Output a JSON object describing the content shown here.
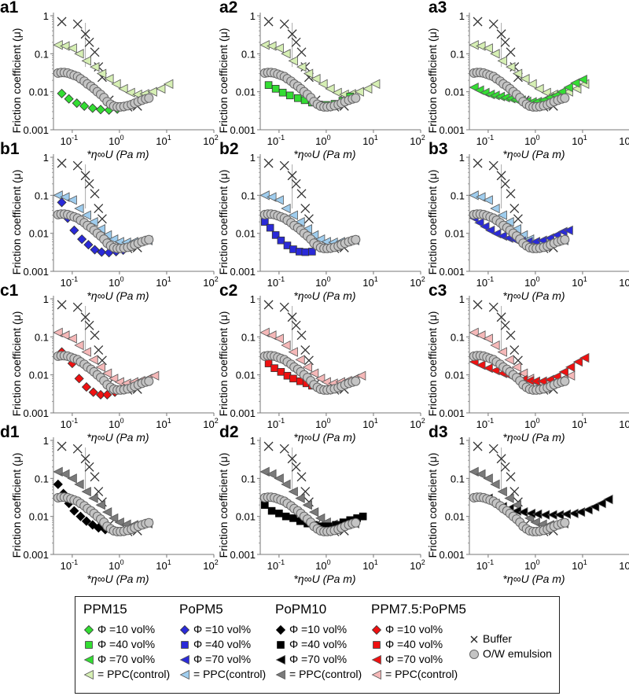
{
  "chart_data": {
    "type": "scatter",
    "xlabel": "*η∞U (Pa m)",
    "ylabel": "Friction coefficient (μ)",
    "xscale": "log",
    "yscale": "log",
    "xlim": [
      0.04,
      100
    ],
    "ylim": [
      0.001,
      1
    ],
    "y_ticks": [
      "1",
      "0.1",
      "0.01",
      "0.001"
    ],
    "y_tick_values": [
      1,
      0.1,
      0.01,
      0.001
    ],
    "x_ticks": [
      {
        "base": "10",
        "exp": "-1",
        "value": 0.1
      },
      {
        "base": "10",
        "exp": "0",
        "value": 1
      },
      {
        "base": "10",
        "exp": "1",
        "value": 10
      },
      {
        "base": "10",
        "exp": "2",
        "value": 100
      }
    ],
    "common_series": {
      "buffer": {
        "name": "Buffer",
        "marker": "x",
        "color": "#333333",
        "x": [
          0.06,
          0.13,
          0.19,
          0.23,
          0.3,
          0.36,
          0.43,
          0.6,
          1.5,
          2.4
        ],
        "y": [
          0.7,
          0.6,
          0.33,
          0.2,
          0.11,
          0.045,
          0.024,
          0.006,
          0.004,
          0.0042
        ],
        "errorbar": {
          "x": 0.19,
          "low": 0.045,
          "high": 0.65
        }
      },
      "emulsion": {
        "name": "O/W emulsion",
        "marker": "circle",
        "color": "#c4c4c4",
        "x": [
          0.05,
          0.058,
          0.068,
          0.08,
          0.094,
          0.11,
          0.13,
          0.15,
          0.18,
          0.21,
          0.25,
          0.29,
          0.34,
          0.4,
          0.47,
          0.55,
          0.65,
          0.76,
          0.9,
          1.05,
          1.25,
          1.5,
          1.8,
          2.1,
          2.5,
          3.0,
          3.6,
          4.2
        ],
        "y": [
          0.031,
          0.032,
          0.032,
          0.031,
          0.029,
          0.027,
          0.025,
          0.022,
          0.019,
          0.016,
          0.014,
          0.012,
          0.01,
          0.0085,
          0.007,
          0.0055,
          0.0047,
          0.0042,
          0.004,
          0.004,
          0.0041,
          0.0043,
          0.0046,
          0.005,
          0.0055,
          0.006,
          0.0065,
          0.0068
        ]
      }
    },
    "panels": [
      {
        "id": "a1",
        "row": 0,
        "col": 0,
        "test": {
          "name": "PPM15 Φ =10 vol%",
          "marker": "diamond",
          "color": "#33dd33",
          "x": [
            0.06,
            0.085,
            0.125,
            0.18,
            0.27,
            0.4,
            0.6,
            0.9
          ],
          "y": [
            0.009,
            0.0065,
            0.005,
            0.0042,
            0.0037,
            0.0034,
            0.0033,
            0.0035
          ]
        }
      },
      {
        "id": "a2",
        "row": 0,
        "col": 1,
        "test": {
          "name": "PPM15 Φ =40 vol%",
          "marker": "square",
          "color": "#33dd33",
          "x": [
            0.06,
            0.085,
            0.12,
            0.17,
            0.25,
            0.35,
            0.5,
            0.7,
            1.0,
            1.5,
            2.2,
            3.2
          ],
          "y": [
            0.015,
            0.012,
            0.0095,
            0.008,
            0.0068,
            0.006,
            0.0052,
            0.0046,
            0.0045,
            0.0048,
            0.0058,
            0.0075
          ]
        }
      },
      {
        "id": "a3",
        "row": 0,
        "col": 2,
        "test": {
          "name": "PPM15 Φ =70 vol%",
          "marker": "triangle",
          "color": "#33dd33",
          "x": [
            0.05,
            0.065,
            0.085,
            0.11,
            0.14,
            0.18,
            0.23,
            0.3,
            0.38,
            0.5,
            0.65,
            0.85,
            1.1,
            1.5,
            2.0,
            2.7,
            3.6,
            5,
            7,
            10
          ],
          "y": [
            0.013,
            0.011,
            0.0095,
            0.0085,
            0.008,
            0.0075,
            0.007,
            0.0066,
            0.0062,
            0.006,
            0.0056,
            0.0054,
            0.0055,
            0.006,
            0.007,
            0.008,
            0.01,
            0.013,
            0.017,
            0.021
          ]
        }
      },
      {
        "id": "b1",
        "row": 1,
        "col": 0,
        "test": {
          "name": "PoPM5 Φ =10 vol%",
          "marker": "diamond",
          "color": "#2a2ad8",
          "x": [
            0.06,
            0.08,
            0.11,
            0.16,
            0.22,
            0.3,
            0.42,
            0.6,
            0.85,
            1.2
          ],
          "y": [
            0.065,
            0.025,
            0.012,
            0.007,
            0.005,
            0.0037,
            0.0032,
            0.0031,
            0.0033,
            0.0036
          ]
        }
      },
      {
        "id": "b2",
        "row": 1,
        "col": 1,
        "test": {
          "name": "PoPM5 Φ =40 vol%",
          "marker": "square",
          "color": "#2a2ad8",
          "x": [
            0.05,
            0.065,
            0.085,
            0.11,
            0.15,
            0.2,
            0.27,
            0.36,
            0.5
          ],
          "y": [
            0.02,
            0.014,
            0.009,
            0.0065,
            0.0048,
            0.0038,
            0.0033,
            0.0032,
            0.0033
          ]
        }
      },
      {
        "id": "b3",
        "row": 1,
        "col": 2,
        "test": {
          "name": "PoPM5 Φ =70 vol%",
          "marker": "triangle",
          "color": "#2a2ad8",
          "x": [
            0.05,
            0.065,
            0.085,
            0.11,
            0.15,
            0.2,
            0.27,
            0.36,
            0.5,
            0.7,
            1.0,
            1.4,
            2.0,
            2.8,
            3.8,
            5
          ],
          "y": [
            0.025,
            0.019,
            0.015,
            0.012,
            0.0098,
            0.0085,
            0.0075,
            0.0068,
            0.0062,
            0.006,
            0.006,
            0.0065,
            0.0075,
            0.009,
            0.011,
            0.012
          ]
        }
      },
      {
        "id": "c1",
        "row": 2,
        "col": 0,
        "test": {
          "name": "PPM7.5:PoPM5 Φ =10 vol%",
          "marker": "diamond",
          "color": "#ee1111",
          "x": [
            0.06,
            0.1,
            0.14,
            0.2,
            0.28,
            0.4,
            0.55,
            0.8
          ],
          "y": [
            0.04,
            0.02,
            0.008,
            0.0048,
            0.0035,
            0.003,
            0.003,
            0.0035
          ]
        }
      },
      {
        "id": "c2",
        "row": 2,
        "col": 1,
        "test": {
          "name": "PPM7.5:PoPM5 Φ =40 vol%",
          "marker": "square",
          "color": "#ee1111",
          "x": [
            0.06,
            0.08,
            0.11,
            0.15,
            0.2,
            0.28,
            0.38,
            0.5
          ],
          "y": [
            0.02,
            0.015,
            0.012,
            0.0095,
            0.008,
            0.0068,
            0.006,
            0.0052
          ]
        }
      },
      {
        "id": "c3",
        "row": 2,
        "col": 2,
        "test": {
          "name": "PPM7.5:PoPM5 Φ =70 vol%",
          "marker": "triangle",
          "color": "#ee1111",
          "x": [
            0.05,
            0.07,
            0.1,
            0.14,
            0.2,
            0.28,
            0.4,
            0.55,
            0.75,
            1.0,
            1.4,
            2.0,
            2.8,
            4,
            5.5,
            8,
            11
          ],
          "y": [
            0.022,
            0.018,
            0.015,
            0.013,
            0.011,
            0.0095,
            0.0085,
            0.0075,
            0.007,
            0.0068,
            0.0068,
            0.0075,
            0.009,
            0.012,
            0.016,
            0.022,
            0.028
          ]
        }
      },
      {
        "id": "d1",
        "row": 3,
        "col": 0,
        "test": {
          "name": "PoPM10 Φ =10 vol%",
          "marker": "diamond",
          "color": "#000000",
          "x": [
            0.05,
            0.065,
            0.085,
            0.11,
            0.15,
            0.2,
            0.27,
            0.36,
            0.5,
            0.7
          ],
          "y": [
            0.07,
            0.04,
            0.022,
            0.014,
            0.01,
            0.0075,
            0.006,
            0.005,
            0.0045,
            0.0043
          ]
        }
      },
      {
        "id": "d2",
        "row": 3,
        "col": 1,
        "test": {
          "name": "PoPM10 Φ =40 vol%",
          "marker": "square",
          "color": "#000000",
          "x": [
            0.05,
            0.07,
            0.1,
            0.14,
            0.2,
            0.28,
            0.4,
            0.55,
            0.8,
            1.1,
            1.6,
            2.3,
            3.2,
            4.5,
            6
          ],
          "y": [
            0.02,
            0.014,
            0.012,
            0.01,
            0.009,
            0.0075,
            0.0065,
            0.006,
            0.0055,
            0.0055,
            0.006,
            0.007,
            0.008,
            0.009,
            0.01
          ]
        }
      },
      {
        "id": "d3",
        "row": 3,
        "col": 2,
        "test": {
          "name": "PoPM10 Φ =70 vol%",
          "marker": "triangle",
          "color": "#000000",
          "x": [
            0.1,
            0.14,
            0.2,
            0.28,
            0.4,
            0.55,
            0.8,
            1.1,
            1.6,
            2.3,
            3.2,
            4.5,
            6.5,
            9,
            13,
            18,
            25,
            35
          ],
          "y": [
            0.03,
            0.022,
            0.018,
            0.016,
            0.014,
            0.013,
            0.012,
            0.0115,
            0.011,
            0.011,
            0.011,
            0.0115,
            0.012,
            0.013,
            0.015,
            0.018,
            0.022,
            0.028
          ]
        }
      }
    ],
    "controls": [
      {
        "row": 0,
        "name": "PPM15 = PPC(control)",
        "color": "#d6efb4",
        "x": [
          0.05,
          0.07,
          0.1,
          0.14,
          0.2,
          0.3,
          0.42,
          0.6,
          0.85,
          1.2,
          1.7,
          2.4,
          3.4,
          5,
          7.5,
          11
        ],
        "y": [
          0.17,
          0.16,
          0.14,
          0.1,
          0.065,
          0.045,
          0.03,
          0.022,
          0.016,
          0.012,
          0.0095,
          0.0085,
          0.0088,
          0.01,
          0.012,
          0.016
        ]
      },
      {
        "row": 1,
        "name": "PoPM5 = PPC(control)",
        "color": "#9fcdee",
        "x": [
          0.05,
          0.07,
          0.1,
          0.14,
          0.2,
          0.28,
          0.4,
          0.55,
          0.75,
          1.0,
          1.4,
          2.0,
          2.8,
          4
        ],
        "y": [
          0.1,
          0.09,
          0.075,
          0.045,
          0.03,
          0.02,
          0.013,
          0.009,
          0.007,
          0.006,
          0.0058,
          0.006,
          0.0062,
          0.0065
        ]
      },
      {
        "row": 2,
        "name": "PPM7.5:PoPM5 = PPC(control)",
        "color": "#f5b8b8",
        "x": [
          0.05,
          0.07,
          0.1,
          0.14,
          0.2,
          0.28,
          0.4,
          0.55,
          0.75,
          1.0,
          1.4,
          2.0,
          2.8,
          4,
          5.5
        ],
        "y": [
          0.13,
          0.11,
          0.09,
          0.06,
          0.04,
          0.025,
          0.016,
          0.011,
          0.008,
          0.0065,
          0.006,
          0.0065,
          0.007,
          0.008,
          0.0095
        ]
      },
      {
        "row": 3,
        "name": "PoPM10 = PPC(control)",
        "color": "#7a7a7a",
        "x": [
          0.05,
          0.07,
          0.1,
          0.14,
          0.2,
          0.28,
          0.4,
          0.55,
          0.75,
          1.0,
          1.4,
          2.0,
          2.8,
          4
        ],
        "y": [
          0.15,
          0.13,
          0.1,
          0.07,
          0.045,
          0.03,
          0.02,
          0.013,
          0.009,
          0.007,
          0.0062,
          0.006,
          0.0062,
          0.0065
        ]
      }
    ]
  },
  "legend": {
    "groups": [
      {
        "title": "PPM15",
        "items": [
          {
            "marker": "diamond",
            "color": "#33dd33",
            "label": "Φ =10 vol%"
          },
          {
            "marker": "square",
            "color": "#33dd33",
            "label": "Φ =40 vol%"
          },
          {
            "marker": "triangle",
            "color": "#33dd33",
            "label": "Φ =70 vol%"
          },
          {
            "marker": "triangle",
            "color": "#d6efb4",
            "label": "= PPC(control)"
          }
        ]
      },
      {
        "title": "PoPM5",
        "items": [
          {
            "marker": "diamond",
            "color": "#2a2ad8",
            "label": "Φ =10 vol%"
          },
          {
            "marker": "square",
            "color": "#2a2ad8",
            "label": "Φ =40 vol%"
          },
          {
            "marker": "triangle",
            "color": "#2a2ad8",
            "label": "Φ =70 vol%"
          },
          {
            "marker": "triangle",
            "color": "#9fcdee",
            "label": "= PPC(control)"
          }
        ]
      },
      {
        "title": "PoPM10",
        "items": [
          {
            "marker": "diamond",
            "color": "#000000",
            "label": "Φ =10 vol%"
          },
          {
            "marker": "square",
            "color": "#000000",
            "label": "Φ =40 vol%"
          },
          {
            "marker": "triangle",
            "color": "#000000",
            "label": "Φ =70 vol%"
          },
          {
            "marker": "triangle",
            "color": "#7a7a7a",
            "label": "= PPC(control)"
          }
        ]
      },
      {
        "title": "PPM7.5:PoPM5",
        "items": [
          {
            "marker": "diamond",
            "color": "#ee1111",
            "label": "Φ =10 vol%"
          },
          {
            "marker": "square",
            "color": "#ee1111",
            "label": "Φ =40 vol%"
          },
          {
            "marker": "triangle",
            "color": "#ee1111",
            "label": "Φ =70 vol%"
          },
          {
            "marker": "triangle",
            "color": "#f5b8b8",
            "label": "= PPC(control)"
          }
        ]
      },
      {
        "title": "",
        "items": [
          {
            "marker": "x",
            "color": "#222222",
            "label": "Buffer"
          },
          {
            "marker": "circle",
            "color": "#c4c4c4",
            "label": "O/W emulsion"
          }
        ]
      }
    ]
  }
}
